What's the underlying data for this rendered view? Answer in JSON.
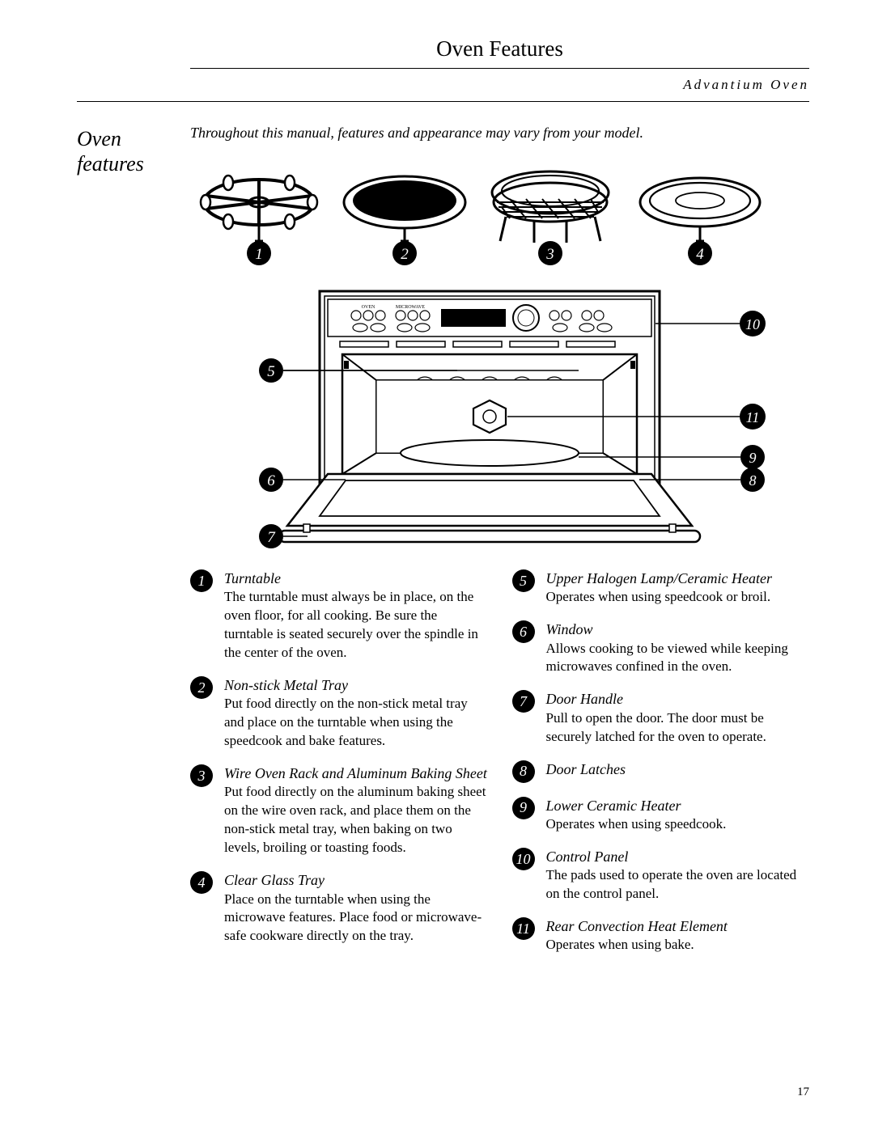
{
  "header": {
    "page_title": "Oven Features",
    "product_name": "Advantium Oven"
  },
  "side_heading": "Oven features",
  "intro_note": "Throughout this manual, features and appearance may vary from your model.",
  "diagram": {
    "accessory_labels": [
      "1",
      "2",
      "3",
      "4"
    ],
    "callout_labels_left": [
      "5",
      "6",
      "7"
    ],
    "callout_labels_right": [
      "10",
      "11",
      "9",
      "8"
    ],
    "panel_text": {
      "oven": "OVEN",
      "microwave": "MICROWAVE"
    },
    "stroke": "#000000",
    "fill_bg": "#ffffff",
    "fill_dark": "#000000"
  },
  "features_left": [
    {
      "num": "1",
      "title": "Turntable",
      "desc": "The turntable must always be in place, on the oven floor, for all cooking. Be sure the turntable is seated securely over the spindle in the center of the oven."
    },
    {
      "num": "2",
      "title": "Non-stick Metal Tray",
      "desc": "Put food directly on the non-stick metal tray and place on the turntable when using the speedcook and bake features."
    },
    {
      "num": "3",
      "title": "Wire Oven Rack and Aluminum Baking Sheet",
      "desc": "Put food directly on the aluminum baking sheet on the wire oven rack, and place them on the non-stick metal tray, when baking on two levels, broiling or toasting foods."
    },
    {
      "num": "4",
      "title": "Clear Glass Tray",
      "desc": "Place on the turntable when using the microwave features. Place food or microwave-safe cookware directly on the tray."
    }
  ],
  "features_right": [
    {
      "num": "5",
      "title": "Upper Halogen Lamp/Ceramic Heater",
      "desc": "Operates when using speedcook or broil."
    },
    {
      "num": "6",
      "title": "Window",
      "desc": "Allows cooking to be viewed while keeping microwaves confined in the oven."
    },
    {
      "num": "7",
      "title": "Door Handle",
      "desc": "Pull to open the door. The door must be securely latched for the oven to operate."
    },
    {
      "num": "8",
      "title": "Door Latches",
      "desc": ""
    },
    {
      "num": "9",
      "title": "Lower Ceramic Heater",
      "desc": "Operates when using speedcook."
    },
    {
      "num": "10",
      "title": "Control Panel",
      "desc": "The pads used to operate the oven are located on the control panel."
    },
    {
      "num": "11",
      "title": "Rear Convection Heat Element",
      "desc": "Operates when using bake."
    }
  ],
  "page_number": "17"
}
